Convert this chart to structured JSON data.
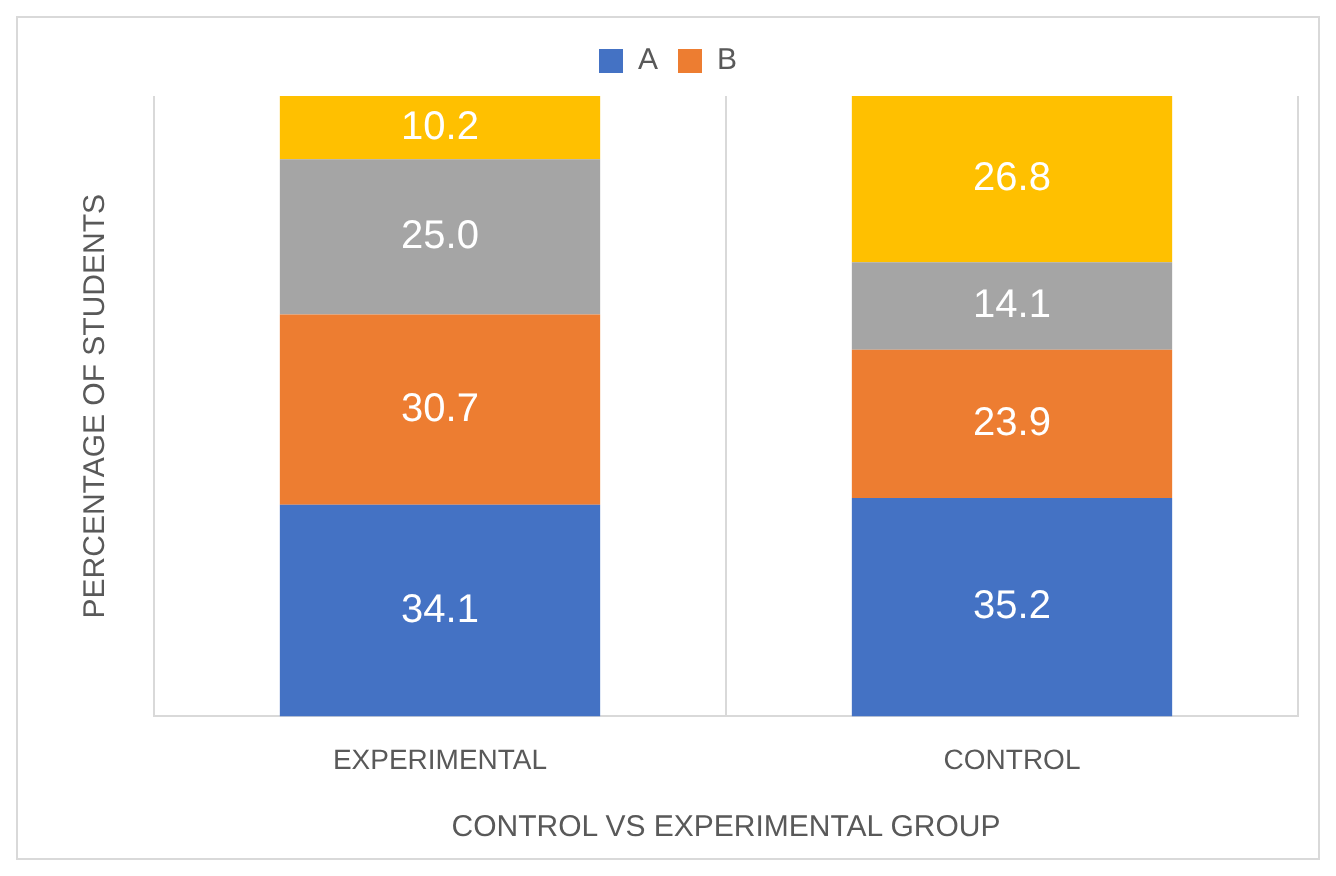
{
  "chart_data": {
    "type": "bar",
    "stacked": true,
    "xlabel": "CONTROL VS EXPERIMENTAL GROUP",
    "ylabel": "PERCENTAGE OF STUDENTS",
    "categories": [
      "EXPERIMENTAL",
      "CONTROL"
    ],
    "series": [
      {
        "name": "A",
        "color": "#4472c4",
        "values": [
          34.1,
          35.2
        ],
        "value_labels": [
          "34.1",
          "35.2"
        ]
      },
      {
        "name": "B",
        "color": "#ed7d31",
        "values": [
          30.7,
          23.9
        ],
        "value_labels": [
          "30.7",
          "23.9"
        ]
      },
      {
        "color": "#a5a5a5",
        "values": [
          25.0,
          14.1
        ],
        "value_labels": [
          "25.0",
          "14.1"
        ]
      },
      {
        "color": "#ffc000",
        "values": [
          10.2,
          26.8
        ],
        "value_labels": [
          "10.2",
          "26.8"
        ]
      }
    ],
    "grid": "x",
    "legend": "top",
    "tick_labels": "x"
  }
}
